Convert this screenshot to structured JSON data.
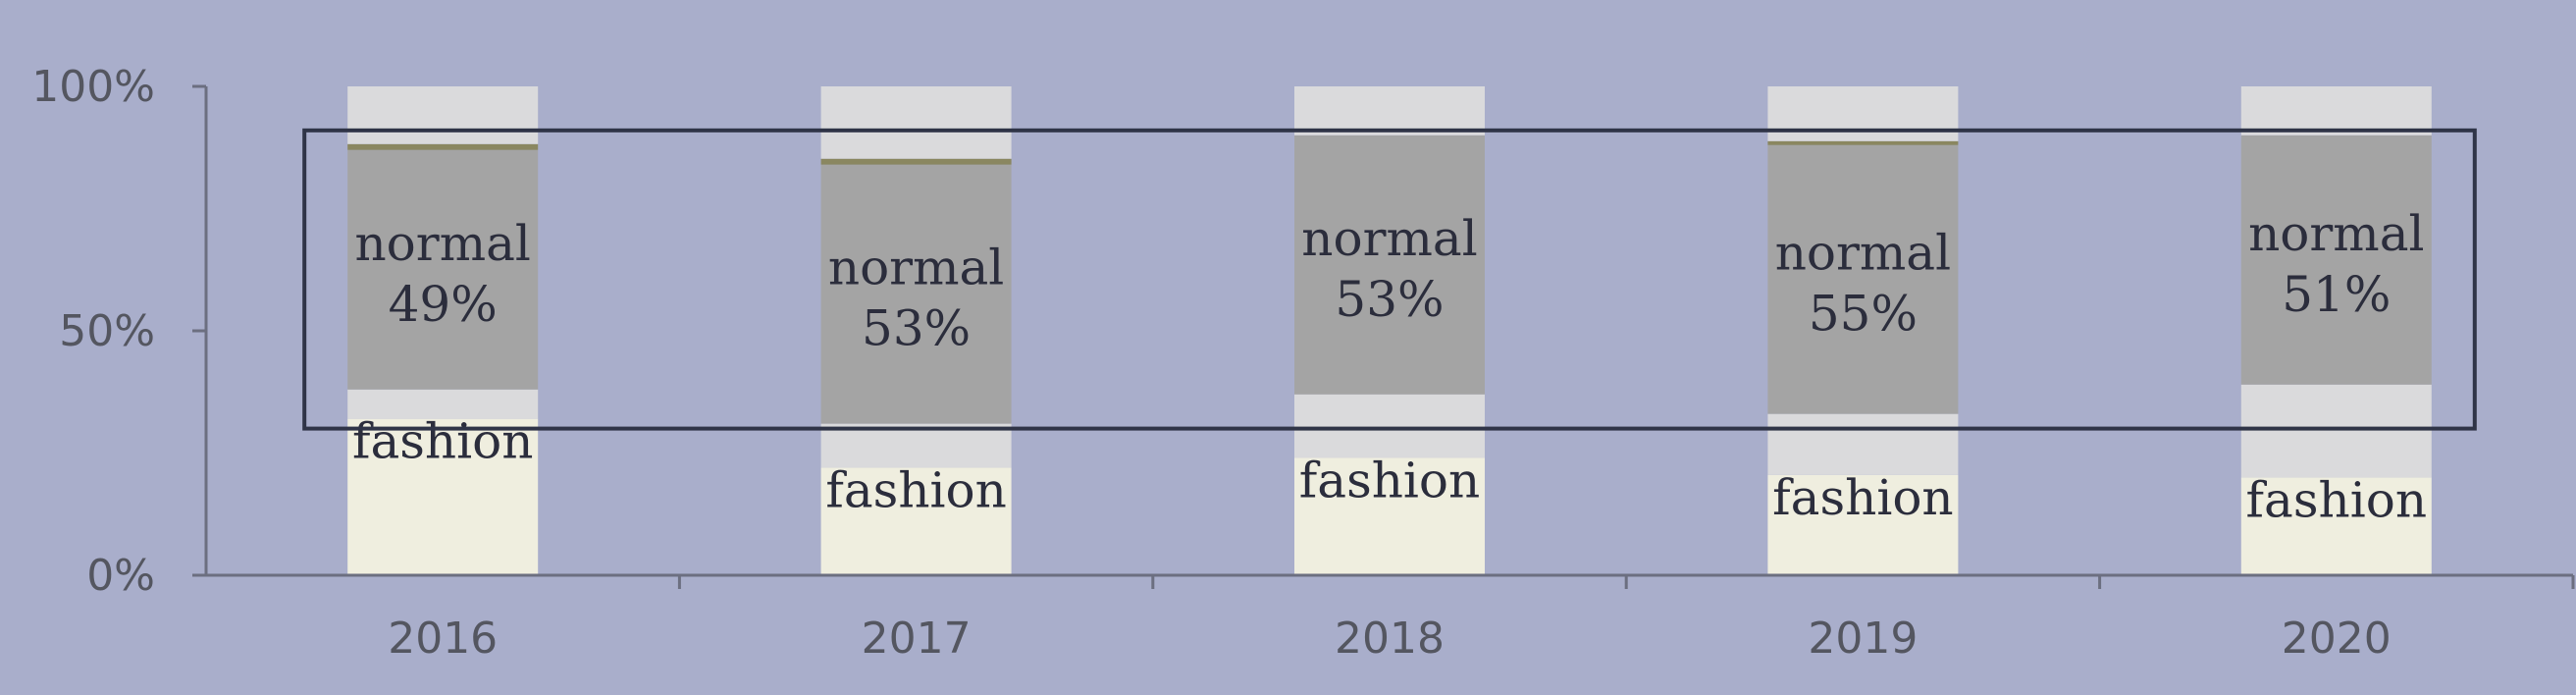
{
  "chart_data": {
    "type": "bar",
    "stacked": true,
    "percent_stacked": true,
    "categories": [
      "2016",
      "2017",
      "2018",
      "2019",
      "2020"
    ],
    "series": [
      {
        "key": "fashion",
        "values": [
          32,
          22,
          24,
          20.5,
          20
        ],
        "color": "#efeedf"
      },
      {
        "key": "light_lower",
        "values": [
          6,
          9,
          13,
          12.5,
          19
        ],
        "color": "#dadadc"
      },
      {
        "key": "normal",
        "values": [
          49,
          53,
          53,
          55,
          51
        ],
        "color": "#a4a4a4"
      },
      {
        "key": "olive",
        "values": [
          1.2,
          1.2,
          0,
          0.8,
          0
        ],
        "color": "#8a8760"
      },
      {
        "key": "light_upper",
        "values": [
          11.8,
          14.8,
          10,
          11.2,
          10
        ],
        "color": "#dadadc"
      }
    ],
    "labels": {
      "normal_word": "normal",
      "normal_pcts": [
        "49%",
        "53%",
        "53%",
        "55%",
        "51%"
      ],
      "fashion_word": "fashion"
    },
    "y_ticks": [
      "0%",
      "50%",
      "100%"
    ],
    "ylim": [
      0,
      100
    ],
    "grid": false,
    "highlight_box": {
      "y_from": 30,
      "y_to": 91
    },
    "colors": {
      "background": "#a9aecb",
      "axis": "#6c6f80",
      "box": "#2f3447",
      "text": "#2b2d3c",
      "tick_text": "#545660"
    }
  }
}
